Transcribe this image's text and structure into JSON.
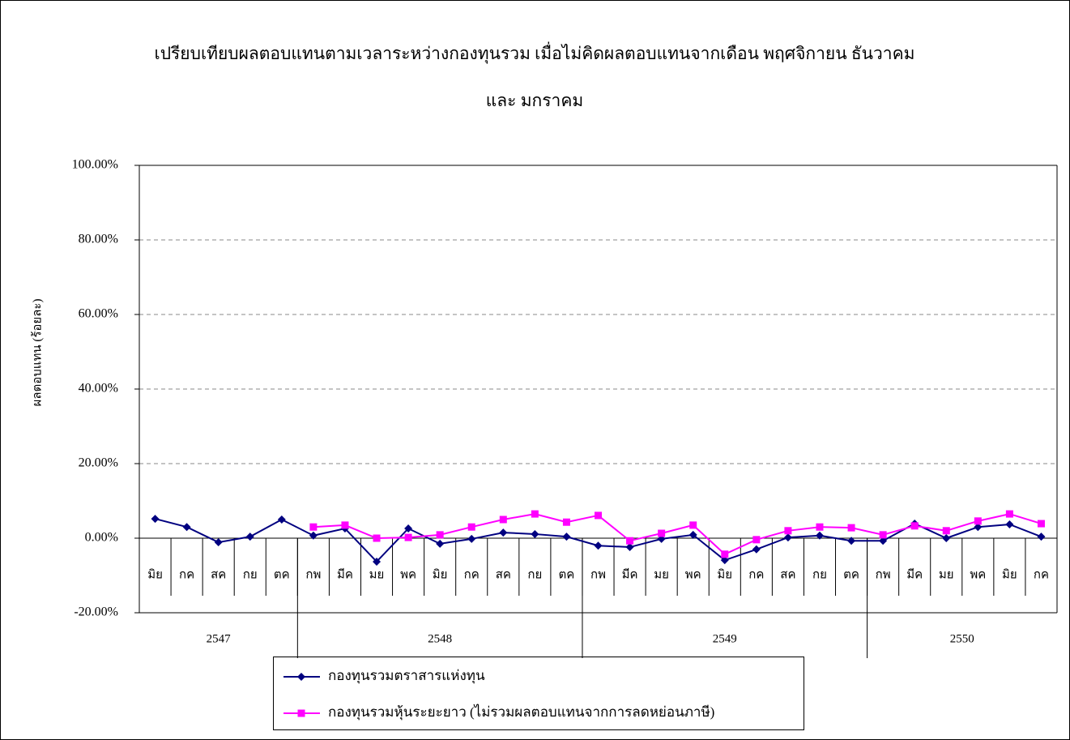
{
  "chart_data": {
    "type": "line",
    "title": [
      "เปรียบเทียบผลตอบแทนตามเวลาระหว่างกองทุนรวม เมื่อไม่คิดผลตอบแทนจากเดือน พฤศจิกายน ธันวาคม",
      "และ มกราคม"
    ],
    "y_label": "ผลตอบแทน (ร้อยละ)",
    "categories": [
      "มิย",
      "กค",
      "สค",
      "กย",
      "ตค",
      "กพ",
      "มีค",
      "มย",
      "พค",
      "มิย",
      "กค",
      "สค",
      "กย",
      "ตค",
      "กพ",
      "มีค",
      "มย",
      "พค",
      "มิย",
      "กค",
      "สค",
      "กย",
      "ตค",
      "กพ",
      "มีค",
      "มย",
      "พค",
      "มิย",
      "กค"
    ],
    "groups": [
      {
        "label": "2547",
        "span": 5
      },
      {
        "label": "2548",
        "span": 9
      },
      {
        "label": "2549",
        "span": 9
      },
      {
        "label": "2550",
        "span": 6
      }
    ],
    "series": [
      {
        "name": "กองทุนรวมตราสารแห่งทุน",
        "color": "#000080",
        "marker": "diamond",
        "values": [
          5.2,
          3.0,
          -1.1,
          0.4,
          5.0,
          0.7,
          2.6,
          -6.3,
          2.6,
          -1.5,
          -0.2,
          1.5,
          1.1,
          0.4,
          -2.0,
          -2.4,
          -0.2,
          0.9,
          -5.9,
          -3.0,
          0.2,
          0.7,
          -0.7,
          -0.7,
          3.9,
          0.0,
          3.0,
          3.7,
          0.4
        ]
      },
      {
        "name": "กองทุนรวมหุ้นระยะยาว (ไม่รวมผลตอบแทนจากการลดหย่อนภาษี)",
        "color": "#ff00ff",
        "marker": "square",
        "values": [
          null,
          null,
          null,
          null,
          null,
          3.0,
          3.5,
          0.0,
          0.2,
          0.9,
          3.0,
          5.0,
          6.5,
          4.3,
          6.1,
          -0.7,
          1.3,
          3.5,
          -4.3,
          -0.4,
          2.0,
          3.0,
          2.8,
          0.9,
          3.3,
          2.0,
          4.6,
          6.5,
          3.9
        ]
      }
    ],
    "ylim": [
      -20,
      100
    ],
    "yticks": [
      {
        "value": -20,
        "label": "-20.00%"
      },
      {
        "value": 0,
        "label": "0.00%"
      },
      {
        "value": 20,
        "label": "20.00%"
      },
      {
        "value": 40,
        "label": "40.00%"
      },
      {
        "value": 60,
        "label": "60.00%"
      },
      {
        "value": 80,
        "label": "80.00%"
      },
      {
        "value": 100,
        "label": "100.00%"
      }
    ],
    "grid": true,
    "legend": "bottom"
  }
}
